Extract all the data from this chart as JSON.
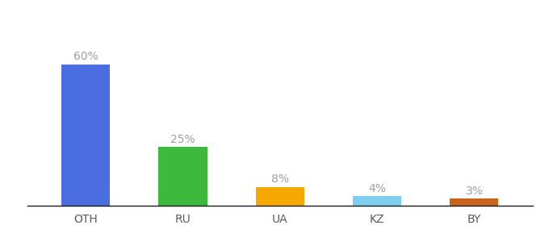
{
  "categories": [
    "OTH",
    "RU",
    "UA",
    "KZ",
    "BY"
  ],
  "values": [
    60,
    25,
    8,
    4,
    3
  ],
  "labels": [
    "60%",
    "25%",
    "8%",
    "4%",
    "3%"
  ],
  "bar_colors": [
    "#4a6ee0",
    "#3dba3d",
    "#f5a800",
    "#7ecfef",
    "#c8651b"
  ],
  "background_color": "#ffffff",
  "ylim": [
    0,
    75
  ],
  "label_color": "#a0a0a0",
  "label_fontsize": 10,
  "tick_label_fontsize": 10,
  "tick_label_color": "#5a5a5a",
  "bar_width": 0.5
}
